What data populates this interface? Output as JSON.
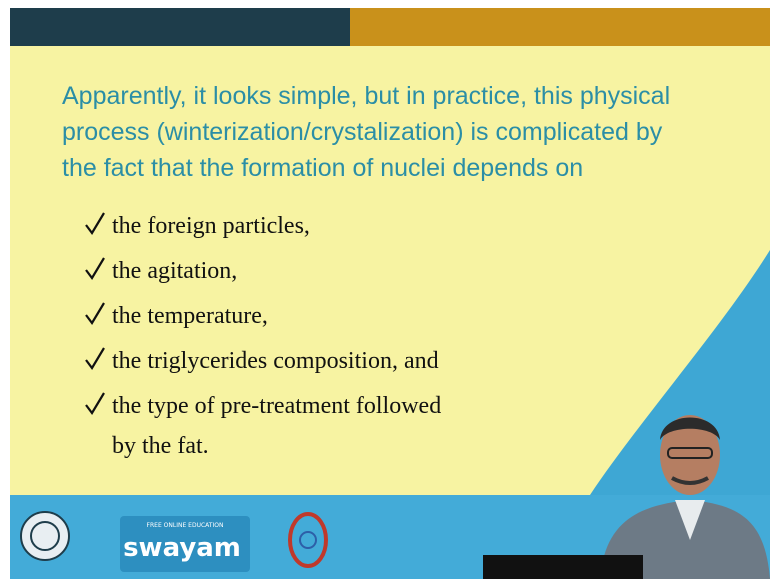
{
  "paragraph": [
    "Apparently, it looks simple, but in practice, this physical",
    "process (winterization/crystalization) is complicated by",
    "the fact that the formation of nuclei depends on"
  ],
  "bullets": [
    [
      "the foreign particles,"
    ],
    [
      "the agitation,"
    ],
    [
      "the temperature,"
    ],
    [
      "the triglycerides composition, and"
    ],
    [
      "the type of pre-treatment followed",
      "by the fat."
    ]
  ],
  "logo": {
    "tagline": "FREE ONLINE EDUCATION",
    "name": "swayam"
  }
}
